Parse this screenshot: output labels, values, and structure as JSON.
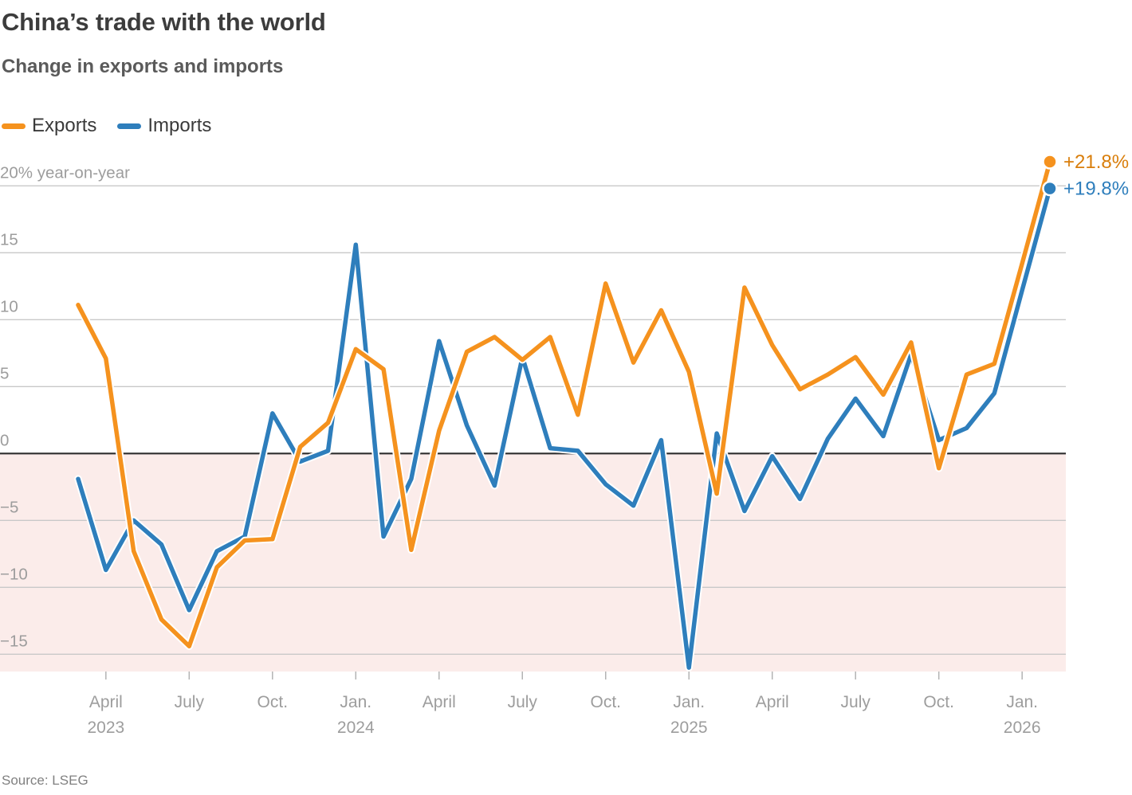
{
  "header": {
    "title": "China’s trade with the world",
    "subtitle": "Change in exports and imports"
  },
  "legend": {
    "exports_label": "Exports",
    "imports_label": "Imports"
  },
  "source": "Source: LSEG",
  "chart_data": {
    "type": "line",
    "title": "China’s trade with the world",
    "subtitle": "Change in exports and imports",
    "ylabel_unit": "20% year-on-year",
    "ylim": [
      -16.5,
      22
    ],
    "grid": "horizontal",
    "legend_position": "top-left",
    "negative_region_shaded": true,
    "months": [
      "Mar. 2023",
      "Apr. 2023",
      "May 2023",
      "Jun. 2023",
      "Jul. 2023",
      "Aug. 2023",
      "Sep. 2023",
      "Oct. 2023",
      "Nov. 2023",
      "Dec. 2023",
      "Jan. 2024",
      "Feb. 2024",
      "Mar. 2024",
      "Apr. 2024",
      "May 2024",
      "Jun. 2024",
      "Jul. 2024",
      "Aug. 2024",
      "Sep. 2024",
      "Oct. 2024",
      "Nov. 2024",
      "Dec. 2024",
      "Jan. 2025",
      "Feb. 2025",
      "Mar. 2025",
      "Apr. 2025",
      "May 2025",
      "Jun. 2025",
      "Jul. 2025",
      "Aug. 2025",
      "Sep. 2025",
      "Oct. 2025",
      "Nov. 2025",
      "Dec. 2025",
      "Jan. 2026",
      "Feb. 2026"
    ],
    "series": [
      {
        "name": "Imports",
        "color": "#2E7EBC",
        "end_label": "+19.8%",
        "end_label_color": "#2E7EBC",
        "values": [
          -1.9,
          -8.7,
          -5.0,
          -6.8,
          -11.7,
          -7.3,
          -6.2,
          3.0,
          -0.6,
          0.2,
          15.6,
          -6.2,
          -1.9,
          8.4,
          2.1,
          -2.4,
          7.2,
          0.4,
          0.2,
          -2.3,
          -3.9,
          1.0,
          -16.0,
          1.5,
          -4.3,
          -0.2,
          -3.4,
          1.1,
          4.1,
          1.3,
          7.4,
          1.0,
          1.9,
          4.5,
          12.2,
          19.8
        ]
      },
      {
        "name": "Exports",
        "color": "#F5921E",
        "end_label": "+21.8%",
        "end_label_color": "#D97E0B",
        "values": [
          11.1,
          7.1,
          -7.3,
          -12.4,
          -14.4,
          -8.5,
          -6.5,
          -6.4,
          0.5,
          2.3,
          7.8,
          6.3,
          -7.2,
          1.7,
          7.6,
          8.7,
          7.0,
          8.7,
          2.9,
          12.7,
          6.8,
          10.7,
          6.1,
          -3.0,
          12.4,
          8.1,
          4.8,
          5.9,
          7.2,
          4.4,
          8.3,
          -1.1,
          5.9,
          6.7,
          14.2,
          21.8
        ]
      }
    ],
    "yticks": [
      {
        "value": 20,
        "label": "20% year-on-year"
      },
      {
        "value": 15,
        "label": "15"
      },
      {
        "value": 10,
        "label": "10"
      },
      {
        "value": 5,
        "label": "5"
      },
      {
        "value": 0,
        "label": "0"
      },
      {
        "value": -5,
        "label": "−5"
      },
      {
        "value": -10,
        "label": "−10"
      },
      {
        "value": -15,
        "label": "−15"
      }
    ],
    "xticks": [
      {
        "month_index": 1,
        "label": "April",
        "year": "2023"
      },
      {
        "month_index": 4,
        "label": "July",
        "year": ""
      },
      {
        "month_index": 7,
        "label": "Oct.",
        "year": ""
      },
      {
        "month_index": 10,
        "label": "Jan.",
        "year": "2024"
      },
      {
        "month_index": 13,
        "label": "April",
        "year": ""
      },
      {
        "month_index": 16,
        "label": "July",
        "year": ""
      },
      {
        "month_index": 19,
        "label": "Oct.",
        "year": ""
      },
      {
        "month_index": 22,
        "label": "Jan.",
        "year": "2025"
      },
      {
        "month_index": 25,
        "label": "April",
        "year": ""
      },
      {
        "month_index": 28,
        "label": "July",
        "year": ""
      },
      {
        "month_index": 31,
        "label": "Oct.",
        "year": ""
      },
      {
        "month_index": 34,
        "label": "Jan.",
        "year": "2026"
      }
    ],
    "colors": {
      "exports_line": "#F5921E",
      "imports_line": "#2E7EBC",
      "negative_background": "#FBECEA",
      "gridline": "#C9C9C9",
      "zero_line": "#2E2E2E",
      "axis_text": "#9D9D9D",
      "tick_mark": "#B3B3B3"
    }
  }
}
